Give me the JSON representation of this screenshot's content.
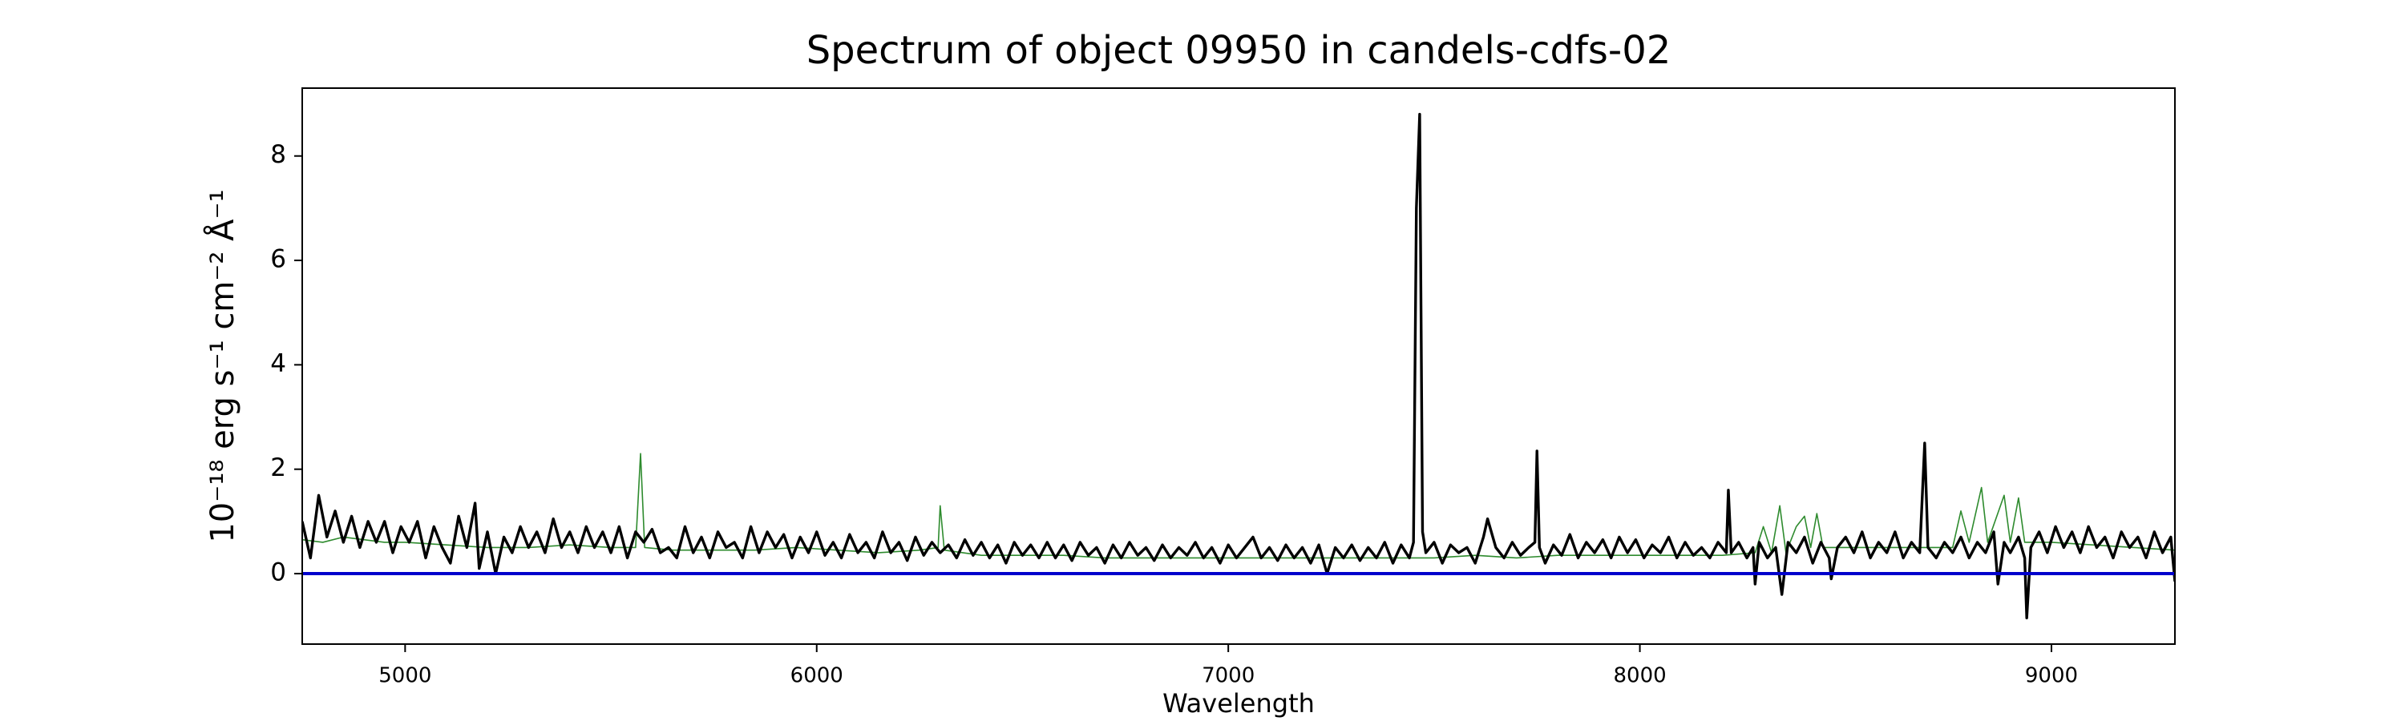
{
  "chart_data": {
    "type": "line",
    "title": "Spectrum of object 09950 in candels-cdfs-02",
    "xlabel": "Wavelength",
    "ylabel": "10⁻¹⁸ erg s⁻¹ cm⁻² Å⁻¹",
    "xlim": [
      4750,
      9300
    ],
    "ylim": [
      -1.35,
      9.3
    ],
    "xticks": [
      5000,
      6000,
      7000,
      8000,
      9000
    ],
    "yticks": [
      0,
      2,
      4,
      6,
      8
    ],
    "series": [
      {
        "color": "#2e8b2e",
        "x": [
          4750,
          4800,
          4850,
          4900,
          4950,
          5000,
          5100,
          5200,
          5300,
          5400,
          5500,
          5560,
          5572,
          5582,
          5650,
          5750,
          5850,
          5950,
          6050,
          6150,
          6250,
          6295,
          6300,
          6310,
          6400,
          6500,
          6600,
          6700,
          6800,
          6900,
          7000,
          7100,
          7200,
          7300,
          7400,
          7500,
          7600,
          7700,
          7800,
          7900,
          8000,
          8100,
          8200,
          8280,
          8300,
          8320,
          8340,
          8355,
          8380,
          8400,
          8415,
          8430,
          8445,
          8500,
          8600,
          8700,
          8760,
          8780,
          8800,
          8830,
          8845,
          8885,
          8900,
          8920,
          8935,
          9000,
          9100,
          9200,
          9300
        ],
        "values": [
          0.65,
          0.6,
          0.7,
          0.65,
          0.6,
          0.6,
          0.55,
          0.5,
          0.5,
          0.55,
          0.5,
          0.5,
          2.3,
          0.5,
          0.45,
          0.45,
          0.45,
          0.5,
          0.45,
          0.4,
          0.45,
          0.5,
          1.3,
          0.45,
          0.35,
          0.35,
          0.35,
          0.3,
          0.3,
          0.3,
          0.3,
          0.3,
          0.3,
          0.3,
          0.3,
          0.3,
          0.35,
          0.3,
          0.35,
          0.35,
          0.35,
          0.35,
          0.35,
          0.4,
          0.9,
          0.4,
          1.3,
          0.4,
          0.9,
          1.1,
          0.5,
          1.15,
          0.5,
          0.5,
          0.5,
          0.5,
          0.5,
          1.2,
          0.6,
          1.65,
          0.6,
          1.5,
          0.6,
          1.45,
          0.6,
          0.6,
          0.55,
          0.5,
          0.45
        ]
      },
      {
        "color": "#000000",
        "x": [
          4750,
          4770,
          4790,
          4810,
          4830,
          4850,
          4870,
          4890,
          4910,
          4930,
          4950,
          4970,
          4990,
          5010,
          5030,
          5050,
          5070,
          5090,
          5110,
          5130,
          5150,
          5170,
          5180,
          5200,
          5220,
          5240,
          5260,
          5280,
          5300,
          5320,
          5340,
          5360,
          5380,
          5400,
          5420,
          5440,
          5460,
          5480,
          5500,
          5520,
          5540,
          5560,
          5580,
          5600,
          5620,
          5640,
          5660,
          5680,
          5700,
          5720,
          5740,
          5760,
          5780,
          5800,
          5820,
          5840,
          5860,
          5880,
          5900,
          5920,
          5940,
          5960,
          5980,
          6000,
          6020,
          6040,
          6060,
          6080,
          6100,
          6120,
          6140,
          6160,
          6180,
          6200,
          6220,
          6240,
          6260,
          6280,
          6300,
          6320,
          6340,
          6360,
          6380,
          6400,
          6420,
          6440,
          6460,
          6480,
          6500,
          6520,
          6540,
          6560,
          6580,
          6600,
          6620,
          6640,
          6660,
          6680,
          6700,
          6720,
          6740,
          6760,
          6780,
          6800,
          6820,
          6840,
          6860,
          6880,
          6900,
          6920,
          6940,
          6960,
          6980,
          7000,
          7020,
          7040,
          7060,
          7080,
          7100,
          7120,
          7140,
          7160,
          7180,
          7200,
          7220,
          7240,
          7260,
          7280,
          7300,
          7320,
          7340,
          7360,
          7380,
          7400,
          7420,
          7440,
          7450,
          7457,
          7465,
          7472,
          7480,
          7500,
          7520,
          7540,
          7560,
          7580,
          7600,
          7620,
          7630,
          7650,
          7670,
          7690,
          7710,
          7730,
          7745,
          7750,
          7756,
          7770,
          7790,
          7810,
          7830,
          7850,
          7870,
          7890,
          7910,
          7930,
          7950,
          7970,
          7990,
          8010,
          8030,
          8050,
          8070,
          8090,
          8110,
          8130,
          8150,
          8170,
          8190,
          8210,
          8215,
          8222,
          8240,
          8260,
          8275,
          8280,
          8290,
          8310,
          8330,
          8345,
          8360,
          8380,
          8400,
          8420,
          8440,
          8460,
          8465,
          8480,
          8500,
          8520,
          8540,
          8560,
          8580,
          8600,
          8620,
          8640,
          8660,
          8680,
          8692,
          8700,
          8720,
          8740,
          8760,
          8780,
          8800,
          8820,
          8840,
          8860,
          8870,
          8885,
          8900,
          8920,
          8935,
          8940,
          8950,
          8970,
          8990,
          9010,
          9030,
          9050,
          9070,
          9090,
          9110,
          9130,
          9150,
          9170,
          9190,
          9210,
          9230,
          9250,
          9270,
          9290,
          9300
        ],
        "values": [
          1.0,
          0.3,
          1.5,
          0.7,
          1.2,
          0.6,
          1.1,
          0.5,
          1.0,
          0.6,
          1.0,
          0.4,
          0.9,
          0.6,
          1.0,
          0.3,
          0.9,
          0.5,
          0.2,
          1.1,
          0.5,
          1.35,
          0.1,
          0.8,
          0.0,
          0.7,
          0.4,
          0.9,
          0.5,
          0.8,
          0.4,
          1.05,
          0.5,
          0.8,
          0.4,
          0.9,
          0.5,
          0.8,
          0.4,
          0.9,
          0.3,
          0.8,
          0.6,
          0.85,
          0.4,
          0.5,
          0.3,
          0.9,
          0.4,
          0.7,
          0.3,
          0.8,
          0.5,
          0.6,
          0.3,
          0.9,
          0.4,
          0.8,
          0.5,
          0.75,
          0.3,
          0.7,
          0.4,
          0.8,
          0.35,
          0.6,
          0.3,
          0.75,
          0.4,
          0.6,
          0.3,
          0.8,
          0.4,
          0.6,
          0.25,
          0.7,
          0.35,
          0.6,
          0.4,
          0.55,
          0.3,
          0.65,
          0.35,
          0.6,
          0.3,
          0.55,
          0.2,
          0.6,
          0.35,
          0.55,
          0.3,
          0.6,
          0.3,
          0.55,
          0.25,
          0.6,
          0.35,
          0.5,
          0.2,
          0.55,
          0.3,
          0.6,
          0.35,
          0.5,
          0.25,
          0.55,
          0.3,
          0.5,
          0.35,
          0.6,
          0.3,
          0.5,
          0.2,
          0.55,
          0.3,
          0.5,
          0.7,
          0.3,
          0.5,
          0.25,
          0.55,
          0.3,
          0.5,
          0.2,
          0.55,
          0.0,
          0.5,
          0.3,
          0.55,
          0.25,
          0.5,
          0.3,
          0.6,
          0.2,
          0.55,
          0.3,
          0.6,
          7.0,
          8.8,
          0.8,
          0.4,
          0.6,
          0.2,
          0.55,
          0.4,
          0.5,
          0.2,
          0.7,
          1.05,
          0.5,
          0.3,
          0.6,
          0.35,
          0.5,
          0.6,
          2.35,
          0.5,
          0.2,
          0.55,
          0.35,
          0.75,
          0.3,
          0.6,
          0.4,
          0.65,
          0.3,
          0.7,
          0.4,
          0.65,
          0.3,
          0.55,
          0.4,
          0.7,
          0.3,
          0.6,
          0.35,
          0.5,
          0.3,
          0.6,
          0.4,
          1.6,
          0.4,
          0.6,
          0.3,
          0.5,
          -0.2,
          0.6,
          0.3,
          0.5,
          -0.4,
          0.6,
          0.4,
          0.7,
          0.2,
          0.6,
          0.3,
          -0.1,
          0.5,
          0.7,
          0.4,
          0.8,
          0.3,
          0.6,
          0.4,
          0.8,
          0.3,
          0.6,
          0.4,
          2.5,
          0.5,
          0.3,
          0.6,
          0.4,
          0.7,
          0.3,
          0.6,
          0.4,
          0.8,
          -0.2,
          0.6,
          0.4,
          0.7,
          0.3,
          -0.85,
          0.5,
          0.8,
          0.4,
          0.9,
          0.5,
          0.8,
          0.4,
          0.9,
          0.5,
          0.7,
          0.3,
          0.8,
          0.5,
          0.7,
          0.3,
          0.8,
          0.4,
          0.7,
          -0.15
        ]
      },
      {
        "color": "#0000cc",
        "x": [
          4750,
          9300
        ],
        "values": [
          0,
          0
        ]
      }
    ]
  }
}
